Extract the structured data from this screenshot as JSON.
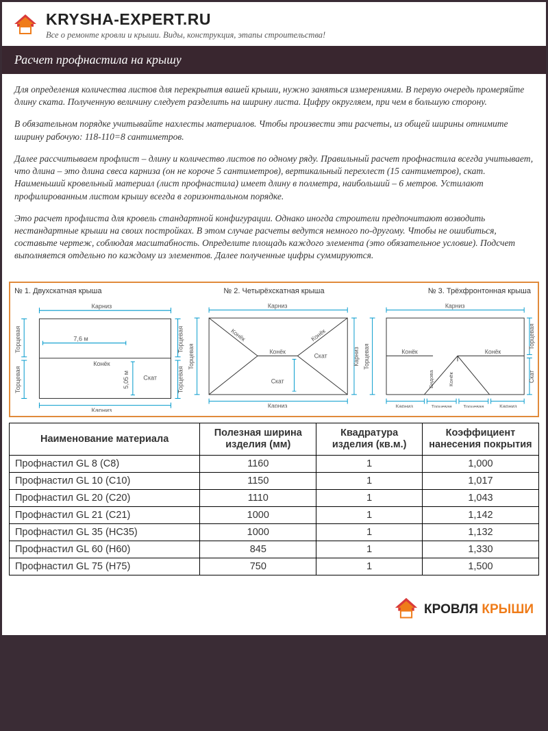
{
  "colors": {
    "page_bg": "#3a2c35",
    "titlebar_bg": "#39262f",
    "panel_border": "#e08a3a",
    "diagram_line": "#0099cc",
    "diagram_text": "#666666",
    "logo_orange": "#ef7c1a",
    "logo_red": "#d93a3a"
  },
  "site": {
    "name": "KRYSHA-EXPERT.RU",
    "tagline": "Все о ремонте кровли и крыши. Виды, конструкция, этапы строительства!"
  },
  "title": "Расчет профнастила на крышу",
  "paragraphs": [
    "Для определения количества листов для перекрытия вашей крыши, нужно заняться измерениями. В первую очередь промеряйте длину ската. Полученную величину следует разделить на ширину листа. Цифру округляем, при чем в большую сторону.",
    "В обязательном порядке учитывайте нахлесты материалов. Чтобы произвести эти расчеты, из общей ширины отнимите ширину рабочую: 118-110=8 сантиметров.",
    "Далее рассчитываем профлист – длину и количество листов по одному ряду. Правильный расчет профнастила всегда учитывает, что длина – это длина свеса карниза (он не короче 5 сантиметров), вертикальный перехлест (15 сантиметров), скат. Наименьший кровельный материал (лист профнастила) имеет длину в полметра, наибольший – 6 метров. Устилают профилированным листом крышу всегда в горизонтальном порядке.",
    "Это расчет профлиста для кровель стандартной конфигурации. Однако иногда строители предпочитают возводить нестандартные крыши на своих постройках. В этом случае расчеты ведутся немного по-другому. Чтобы не ошибиться, составьте чертеж, соблюдая масштабность. Определите площадь каждого элемента (это обязательное условие). Подсчет выполняется отдельно по каждому из элементов. Далее полученные цифры суммируются."
  ],
  "diagrams": {
    "d1": {
      "title": "№ 1. Двухскатная крыша",
      "labels": {
        "karniz": "Карниз",
        "torcevaja": "Торцевая",
        "konek": "Конёк",
        "skat": "Скат",
        "dim_w": "7,6 м",
        "dim_h": "5,05 м"
      }
    },
    "d2": {
      "title": "№ 2. Четырёхскатная крыша",
      "labels": {
        "karniz": "Карниз",
        "torcevaja": "Торцевая",
        "konek": "Конёк",
        "skat": "Скат"
      }
    },
    "d3": {
      "title": "№ 3. Трёхфронтонная крыша",
      "labels": {
        "karniz": "Карниз",
        "torcevaja": "Торцевая",
        "konek": "Конёк",
        "skat": "Скат",
        "endova": "Ендова"
      }
    }
  },
  "table": {
    "columns": [
      "Наименование материала",
      "Полезная ширина изделия (мм)",
      "Квадратура изделия (кв.м.)",
      "Коэффициент нанесения покрытия"
    ],
    "rows": [
      [
        "Профнастил GL 8 (С8)",
        "1160",
        "1",
        "1,000"
      ],
      [
        "Профнастил GL 10 (С10)",
        "1150",
        "1",
        "1,017"
      ],
      [
        "Профнастил GL 20 (С20)",
        "1110",
        "1",
        "1,043"
      ],
      [
        "Профнастил GL 21 (С21)",
        "1000",
        "1",
        "1,142"
      ],
      [
        "Профнастил GL 35 (НС35)",
        "1000",
        "1",
        "1,132"
      ],
      [
        "Профнастил GL 60 (Н60)",
        "845",
        "1",
        "1,330"
      ],
      [
        "Профнастил GL 75 (Н75)",
        "750",
        "1",
        "1,500"
      ]
    ]
  },
  "footer": {
    "word1": "КРОВЛЯ",
    "word2": "КРЫШИ"
  }
}
